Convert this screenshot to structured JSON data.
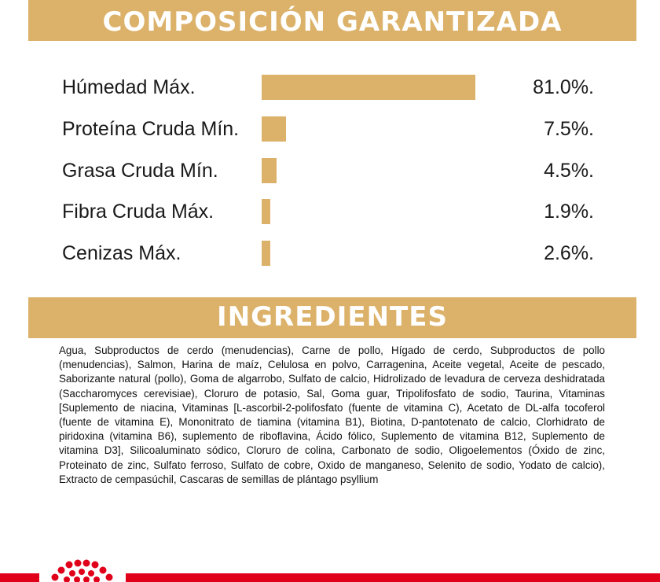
{
  "composition": {
    "title": "COMPOSICIÓN GARANTIZADA",
    "rows": [
      {
        "label": "Húmedad Máx.",
        "value": "81.0%.",
        "percent": 81.0
      },
      {
        "label": "Proteína Cruda Mín.",
        "value": "7.5%.",
        "percent": 7.5
      },
      {
        "label": "Grasa Cruda Mín.",
        "value": "4.5%.",
        "percent": 4.5
      },
      {
        "label": "Fibra Cruda Máx.",
        "value": "1.9%.",
        "percent": 1.9
      },
      {
        "label": "Cenizas Máx.",
        "value": "2.6%.",
        "percent": 2.6
      }
    ]
  },
  "ingredients": {
    "title": "INGREDIENTES",
    "text": "Agua, Subproductos de cerdo (menudencias), Carne de pollo, Hígado de cerdo, Subproductos de pollo (menudencias), Salmon, Harina de maíz, Celulosa en polvo, Carragenina, Aceite vegetal, Aceite de pescado, Saborizante natural (pollo), Goma de algarrobo, Sulfato de calcio, Hidrolizado de levadura de cerveza deshidratada (Saccharomyces cerevisiae), Cloruro de potasio, Sal, Goma guar, Tripolifosfato de sodio, Taurina, Vitaminas [Suplemento de niacina, Vitaminas [L-ascorbil-2-polifosfato (fuente de vitamina C), Acetato de DL-alfa tocoferol (fuente de vitamina E), Mononitrato de tiamina (vitamina B1), Biotina, D-pantotenato de calcio, Clorhidrato de piridoxina (vitamina B6), suplemento de riboflavina, Ácido fólico, Suplemento de vitamina B12, Suplemento de vitamina D3], Silicoaluminato sódico, Cloruro de colina, Carbonato de sodio, Oligoelementos (Óxido de zinc, Proteinato de zinc, Sulfato ferroso, Sulfato de cobre, Oxido de manganeso, Selenito de sodio, Yodato de calcio), Extracto de cempasúchil, Cascaras de semillas de plántago psyllium"
  },
  "colors": {
    "accent": "#dcb26a",
    "brand_red": "#e1001a"
  },
  "icons": {
    "logo": "royal-canin-crown-icon"
  }
}
